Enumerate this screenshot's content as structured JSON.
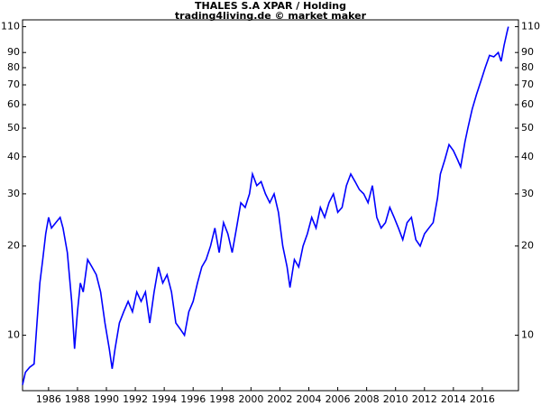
{
  "chart_data": {
    "type": "line",
    "title": "THALES S.A XPAR / Holding",
    "subtitle": "trading4living.de © market maker",
    "log_scale": true,
    "grid": false,
    "x": [
      1984.2,
      1984.4,
      1984.7,
      1985.0,
      1985.2,
      1985.4,
      1985.6,
      1985.8,
      1986.0,
      1986.2,
      1986.5,
      1986.8,
      1987.0,
      1987.3,
      1987.6,
      1987.8,
      1988.0,
      1988.2,
      1988.4,
      1988.7,
      1989.0,
      1989.3,
      1989.6,
      1989.9,
      1990.2,
      1990.4,
      1990.6,
      1990.9,
      1991.2,
      1991.5,
      1991.8,
      1992.1,
      1992.4,
      1992.7,
      1993.0,
      1993.3,
      1993.6,
      1993.9,
      1994.2,
      1994.5,
      1994.8,
      1995.1,
      1995.4,
      1995.7,
      1996.0,
      1996.3,
      1996.6,
      1996.9,
      1997.2,
      1997.5,
      1997.8,
      1998.1,
      1998.4,
      1998.7,
      1999.0,
      1999.3,
      1999.6,
      1999.9,
      2000.1,
      2000.4,
      2000.7,
      2001.0,
      2001.3,
      2001.6,
      2001.9,
      2002.2,
      2002.5,
      2002.7,
      2003.0,
      2003.3,
      2003.6,
      2003.9,
      2004.2,
      2004.5,
      2004.8,
      2005.1,
      2005.4,
      2005.7,
      2006.0,
      2006.3,
      2006.6,
      2006.9,
      2007.2,
      2007.5,
      2007.8,
      2008.1,
      2008.4,
      2008.7,
      2009.0,
      2009.3,
      2009.6,
      2009.9,
      2010.2,
      2010.5,
      2010.8,
      2011.1,
      2011.4,
      2011.7,
      2012.0,
      2012.3,
      2012.6,
      2012.9,
      2013.1,
      2013.4,
      2013.7,
      2014.0,
      2014.3,
      2014.5,
      2014.8,
      2015.0,
      2015.3,
      2015.6,
      2015.9,
      2016.2,
      2016.5,
      2016.8,
      2017.1,
      2017.3,
      2017.5,
      2017.7,
      2017.8
    ],
    "series": [
      {
        "color": "#0000ff",
        "values": [
          6.8,
          7.5,
          7.8,
          8.0,
          11,
          15,
          18,
          22,
          25,
          23,
          24,
          25,
          23,
          19,
          13,
          9,
          12,
          15,
          14,
          18,
          17,
          16,
          14,
          11,
          9,
          7.7,
          9,
          11,
          12,
          13,
          12,
          14,
          13,
          14,
          11,
          14,
          17,
          15,
          16,
          14,
          11,
          10.5,
          10,
          12,
          13,
          15,
          17,
          18,
          20,
          23,
          19,
          24,
          22,
          19,
          23,
          28,
          27,
          30,
          35,
          32,
          33,
          30,
          28,
          30,
          26,
          20,
          17,
          14.5,
          18,
          17,
          20,
          22,
          25,
          23,
          27,
          25,
          28,
          30,
          26,
          27,
          32,
          35,
          33,
          31,
          30,
          28,
          32,
          25,
          23,
          24,
          27,
          25,
          23,
          21,
          24,
          25,
          21,
          20,
          22,
          23,
          24,
          29,
          35,
          39,
          44,
          42,
          39,
          37,
          45,
          50,
          58,
          65,
          72,
          80,
          88,
          87,
          90,
          84,
          95,
          105,
          110
        ]
      }
    ],
    "xlim": [
      1984.2,
      2018.5
    ],
    "xticks": [
      1986,
      1988,
      1990,
      1992,
      1994,
      1996,
      1998,
      2000,
      2002,
      2004,
      2006,
      2008,
      2010,
      2012,
      2014,
      2016
    ],
    "ylim": [
      6.5,
      116
    ],
    "yticks": [
      10,
      20,
      30,
      40,
      50,
      60,
      70,
      80,
      90,
      110
    ]
  }
}
